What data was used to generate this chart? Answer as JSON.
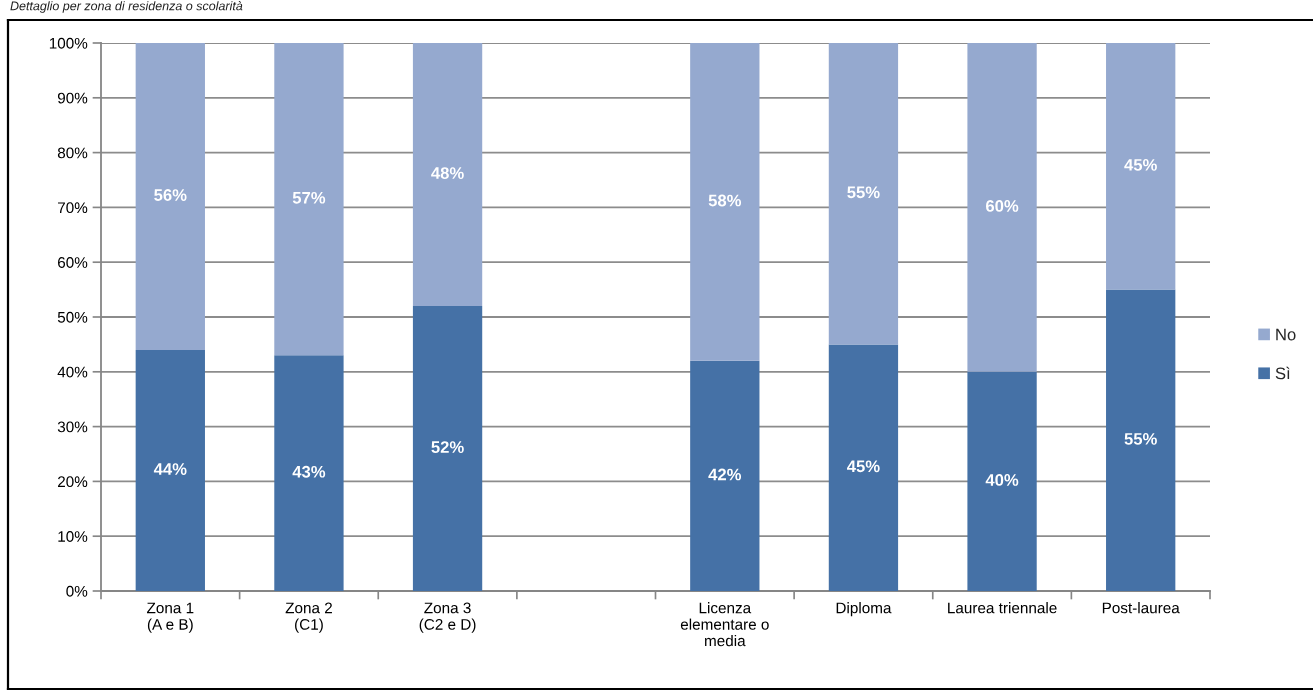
{
  "chart_data": {
    "type": "bar",
    "title": "Dettaglio per zona di residenza o scolarità",
    "categories": [
      "Zona 1\n(A e B)",
      "Zona 2\n(C1)",
      "Zona 3\n(C2 e D)",
      null,
      "Licenza\nelementare o\nmedia",
      "Diploma",
      "Laurea triennale",
      "Post-laurea"
    ],
    "series": [
      {
        "name": "Sì",
        "color": "#4571a6",
        "values": [
          44,
          43,
          52,
          null,
          42,
          45,
          40,
          55
        ],
        "value_labels": [
          "44%",
          "43%",
          "52%",
          null,
          "42%",
          "45%",
          "40%",
          "55%"
        ]
      },
      {
        "name": "No",
        "color": "#95a9cf",
        "values": [
          56,
          57,
          48,
          null,
          58,
          55,
          60,
          45
        ],
        "value_labels": [
          "56%",
          "57%",
          "48%",
          null,
          "58%",
          "55%",
          "60%",
          "45%"
        ]
      }
    ],
    "stacked": true,
    "ylim": [
      0,
      100
    ],
    "yticks": [
      {
        "value": 0,
        "label": "0%"
      },
      {
        "value": 10,
        "label": "10%"
      },
      {
        "value": 20,
        "label": "20%"
      },
      {
        "value": 30,
        "label": "30%"
      },
      {
        "value": 40,
        "label": "40%"
      },
      {
        "value": 50,
        "label": "50%"
      },
      {
        "value": 60,
        "label": "60%"
      },
      {
        "value": 70,
        "label": "70%"
      },
      {
        "value": 80,
        "label": "80%"
      },
      {
        "value": 90,
        "label": "90%"
      },
      {
        "value": 100,
        "label": "100%"
      }
    ],
    "grid": "y",
    "legend": "right"
  }
}
